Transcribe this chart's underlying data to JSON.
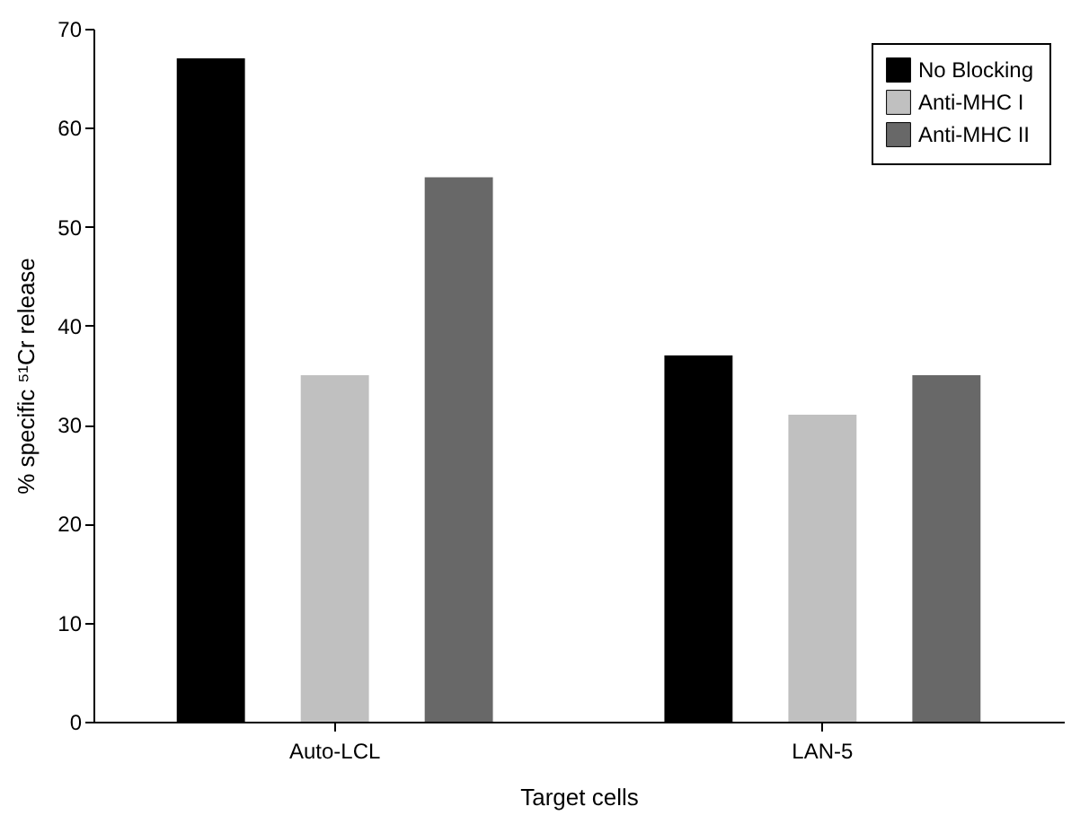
{
  "chart_data": {
    "type": "bar",
    "xlabel": "Target cells",
    "ylabel": "% specific ⁵¹Cr release",
    "categories": [
      "Auto-LCL",
      "LAN-5"
    ],
    "series": [
      {
        "name": "No Blocking",
        "color": "#000000",
        "values": [
          67,
          37
        ]
      },
      {
        "name": "Anti-MHC I",
        "color": "#c0c0c0",
        "values": [
          35,
          31
        ]
      },
      {
        "name": "Anti-MHC II",
        "color": "#686868",
        "values": [
          55,
          35
        ]
      }
    ],
    "ylim": [
      0,
      70
    ],
    "yticks": [
      0,
      10,
      20,
      30,
      40,
      50,
      60,
      70
    ],
    "legend": "top right",
    "grid": false
  }
}
